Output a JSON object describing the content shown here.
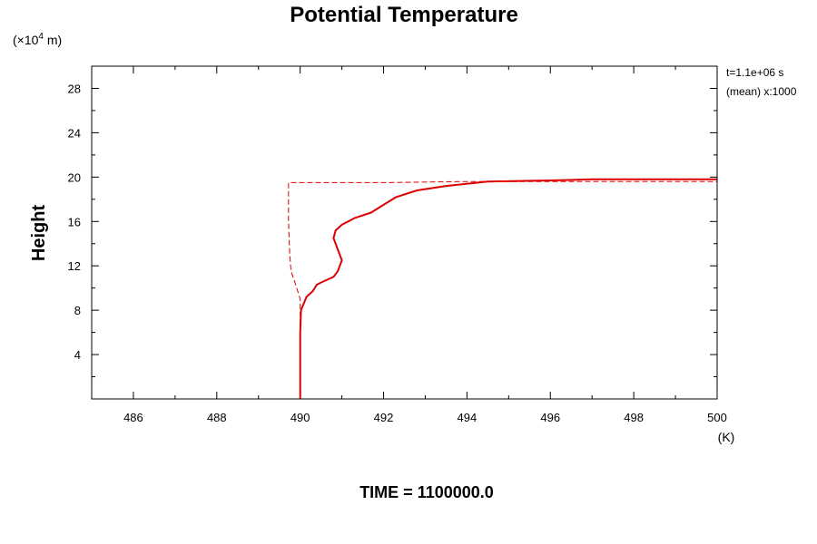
{
  "chart_data": {
    "type": "line",
    "title": "Potential Temperature",
    "xlabel": "(K)",
    "ylabel": "Height",
    "y_unit_prefix": "(×10",
    "y_unit_exponent": "4",
    "y_unit_suffix": " m)",
    "xlim": [
      485,
      500
    ],
    "ylim": [
      0,
      30
    ],
    "x_major_ticks": [
      486,
      488,
      490,
      492,
      494,
      496,
      498,
      500
    ],
    "y_major_ticks": [
      4,
      8,
      12,
      16,
      20,
      24,
      28
    ],
    "grid": false,
    "annotations": [
      "t=1.1e+06 s",
      "(mean) x:1000"
    ],
    "footer": "TIME = 1100000.0",
    "series": [
      {
        "style": "solid",
        "color": "#dd0000",
        "points": [
          [
            490.0,
            0.0
          ],
          [
            490.0,
            6.0
          ],
          [
            490.02,
            8.0
          ],
          [
            490.15,
            9.2
          ],
          [
            490.3,
            9.7
          ],
          [
            490.35,
            10.0
          ],
          [
            490.4,
            10.3
          ],
          [
            490.5,
            10.5
          ],
          [
            490.8,
            11.0
          ],
          [
            490.9,
            11.5
          ],
          [
            491.0,
            12.5
          ],
          [
            490.9,
            13.5
          ],
          [
            490.8,
            14.5
          ],
          [
            490.85,
            15.2
          ],
          [
            491.0,
            15.7
          ],
          [
            491.3,
            16.3
          ],
          [
            491.7,
            16.8
          ],
          [
            492.0,
            17.5
          ],
          [
            492.3,
            18.2
          ],
          [
            492.8,
            18.8
          ],
          [
            493.5,
            19.2
          ],
          [
            494.5,
            19.6
          ],
          [
            496.0,
            19.7
          ],
          [
            497.0,
            19.8
          ],
          [
            498.0,
            19.8
          ],
          [
            500.0,
            19.8
          ]
        ]
      },
      {
        "style": "dashed",
        "color": "#dd0000",
        "points": [
          [
            490.0,
            0.0
          ],
          [
            490.0,
            9.0
          ],
          [
            489.9,
            10.2
          ],
          [
            489.78,
            11.5
          ],
          [
            489.75,
            13.0
          ],
          [
            489.72,
            16.0
          ],
          [
            489.72,
            19.5
          ],
          [
            492.0,
            19.5
          ],
          [
            494.0,
            19.6
          ],
          [
            496.0,
            19.6
          ],
          [
            498.0,
            19.6
          ],
          [
            500.0,
            19.6
          ]
        ]
      }
    ]
  }
}
